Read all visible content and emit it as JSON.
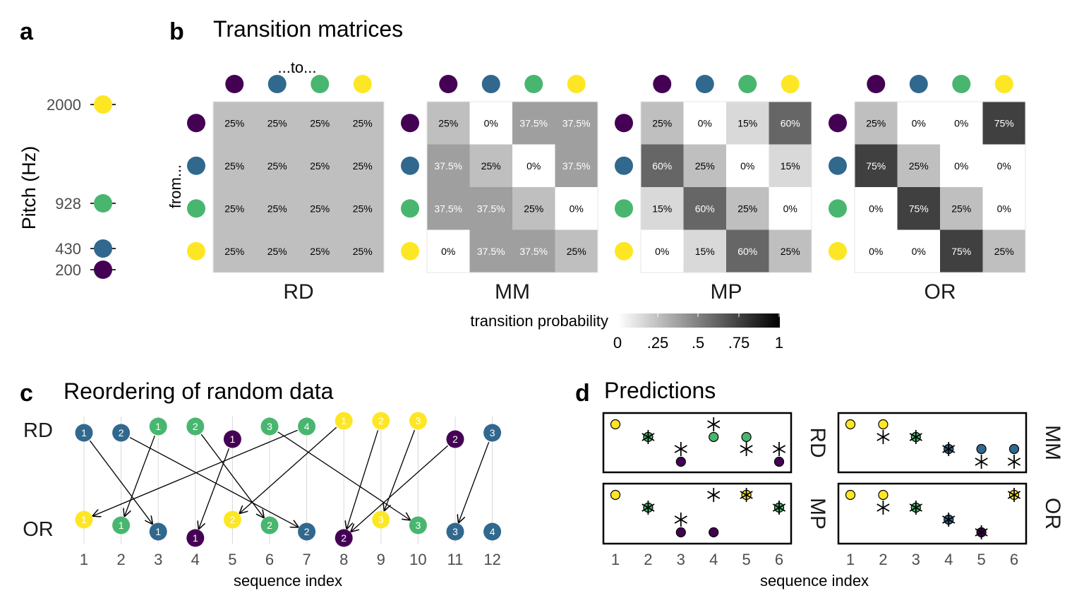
{
  "colors": {
    "200": "#440154",
    "430": "#31688E",
    "928": "#48B66F",
    "2000": "#FDE725"
  },
  "panel_a": {
    "letter": "a",
    "ylabel": "Pitch (Hz)",
    "ticks": [
      "2000",
      "928",
      "430",
      "200"
    ]
  },
  "panel_b": {
    "letter": "b",
    "title": "Transition matrices",
    "to_label": "...to...",
    "from_label": "from...",
    "legend_title": "transition probability",
    "legend_ticks": [
      "0",
      ".25",
      ".5",
      ".75",
      "1"
    ]
  },
  "panel_c": {
    "letter": "c",
    "title": "Reordering of random data",
    "xlabel": "sequence index",
    "row_labels": [
      "RD",
      "OR"
    ]
  },
  "panel_d": {
    "letter": "d",
    "title": "Predictions",
    "xlabel": "sequence index"
  },
  "chart_data": [
    {
      "type": "scatter",
      "id": "pitch_scale",
      "ylabel": "Pitch (Hz)",
      "values_hz": [
        2000,
        928,
        430,
        200
      ]
    },
    {
      "type": "heatmap",
      "id": "transition_matrices",
      "title": "Transition matrices",
      "row_label": "from...",
      "col_label": "...to...",
      "states_hz": [
        200,
        430,
        928,
        2000
      ],
      "legend": {
        "title": "transition probability",
        "range": [
          0,
          1
        ],
        "ticks": [
          "0",
          ".25",
          ".5",
          ".75",
          "1"
        ]
      },
      "matrices": [
        {
          "name": "RD",
          "values": [
            [
              0.25,
              0.25,
              0.25,
              0.25
            ],
            [
              0.25,
              0.25,
              0.25,
              0.25
            ],
            [
              0.25,
              0.25,
              0.25,
              0.25
            ],
            [
              0.25,
              0.25,
              0.25,
              0.25
            ]
          ],
          "labels": [
            [
              "25%",
              "25%",
              "25%",
              "25%"
            ],
            [
              "25%",
              "25%",
              "25%",
              "25%"
            ],
            [
              "25%",
              "25%",
              "25%",
              "25%"
            ],
            [
              "25%",
              "25%",
              "25%",
              "25%"
            ]
          ]
        },
        {
          "name": "MM",
          "values": [
            [
              0.25,
              0,
              0.375,
              0.375
            ],
            [
              0.375,
              0.25,
              0,
              0.375
            ],
            [
              0.375,
              0.375,
              0.25,
              0
            ],
            [
              0,
              0.375,
              0.375,
              0.25
            ]
          ],
          "labels": [
            [
              "25%",
              "0%",
              "37.5%",
              "37.5%"
            ],
            [
              "37.5%",
              "25%",
              "0%",
              "37.5%"
            ],
            [
              "37.5%",
              "37.5%",
              "25%",
              "0%"
            ],
            [
              "0%",
              "37.5%",
              "37.5%",
              "25%"
            ]
          ]
        },
        {
          "name": "MP",
          "values": [
            [
              0.25,
              0,
              0.15,
              0.6
            ],
            [
              0.6,
              0.25,
              0,
              0.15
            ],
            [
              0.15,
              0.6,
              0.25,
              0
            ],
            [
              0,
              0.15,
              0.6,
              0.25
            ]
          ],
          "labels": [
            [
              "25%",
              "0%",
              "15%",
              "60%"
            ],
            [
              "60%",
              "25%",
              "0%",
              "15%"
            ],
            [
              "15%",
              "60%",
              "25%",
              "0%"
            ],
            [
              "0%",
              "15%",
              "60%",
              "25%"
            ]
          ]
        },
        {
          "name": "OR",
          "values": [
            [
              0.25,
              0,
              0,
              0.75
            ],
            [
              0.75,
              0.25,
              0,
              0
            ],
            [
              0,
              0.75,
              0.25,
              0
            ],
            [
              0,
              0,
              0.75,
              0.25
            ]
          ],
          "labels": [
            [
              "25%",
              "0%",
              "0%",
              "75%"
            ],
            [
              "75%",
              "25%",
              "0%",
              "0%"
            ],
            [
              "0%",
              "75%",
              "25%",
              "0%"
            ],
            [
              "0%",
              "0%",
              "75%",
              "25%"
            ]
          ]
        }
      ]
    },
    {
      "type": "scatter",
      "id": "reordering",
      "title": "Reordering of random data",
      "xlabel": "sequence index",
      "x": [
        1,
        2,
        3,
        4,
        5,
        6,
        7,
        8,
        9,
        10,
        11,
        12
      ],
      "series": [
        {
          "name": "RD",
          "pitch_hz": [
            430,
            430,
            928,
            928,
            200,
            928,
            928,
            2000,
            2000,
            2000,
            200,
            430
          ],
          "labels": [
            "1",
            "2",
            "1",
            "2",
            "1",
            "3",
            "4",
            "1",
            "2",
            "3",
            "2",
            "3"
          ]
        },
        {
          "name": "OR",
          "pitch_hz": [
            2000,
            928,
            430,
            200,
            2000,
            928,
            430,
            200,
            2000,
            928,
            430,
            430
          ],
          "labels": [
            "1",
            "1",
            "1",
            "1",
            "2",
            "2",
            "2",
            "2",
            "3",
            "3",
            "3",
            "4"
          ]
        }
      ],
      "arrows_rd_to_or": [
        [
          1,
          3
        ],
        [
          2,
          7
        ],
        [
          3,
          2
        ],
        [
          4,
          6
        ],
        [
          5,
          4
        ],
        [
          6,
          10
        ],
        [
          7,
          1
        ],
        [
          8,
          5
        ],
        [
          9,
          8
        ],
        [
          10,
          9
        ],
        [
          11,
          8
        ],
        [
          12,
          11
        ]
      ]
    },
    {
      "type": "scatter",
      "id": "predictions",
      "title": "Predictions",
      "xlabel": "sequence index",
      "x": [
        1,
        2,
        3,
        4,
        5,
        6
      ],
      "pitch_scale_hz": [
        200,
        430,
        928,
        2000
      ],
      "panels": [
        {
          "name": "RD",
          "observed_hz": [
            2000,
            928,
            200,
            928,
            928,
            200
          ],
          "predicted_hz": [
            null,
            928,
            430,
            2000,
            430,
            430
          ]
        },
        {
          "name": "MM",
          "observed_hz": [
            2000,
            2000,
            928,
            430,
            430,
            430
          ],
          "predicted_hz": [
            null,
            928,
            928,
            430,
            200,
            200
          ]
        },
        {
          "name": "MP",
          "observed_hz": [
            2000,
            928,
            200,
            200,
            2000,
            928
          ],
          "predicted_hz": [
            null,
            928,
            430,
            2000,
            2000,
            928
          ]
        },
        {
          "name": "OR",
          "observed_hz": [
            2000,
            2000,
            928,
            430,
            200,
            2000
          ],
          "predicted_hz": [
            null,
            928,
            928,
            430,
            200,
            2000
          ]
        }
      ]
    }
  ]
}
